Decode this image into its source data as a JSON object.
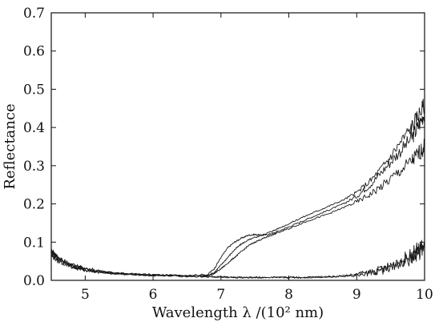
{
  "chart_data": {
    "type": "line",
    "title": "",
    "xlabel": "Wavelength λ /(10² nm)",
    "ylabel": "Reflectance",
    "xlim": [
      4.5,
      10
    ],
    "ylim": [
      0,
      0.7
    ],
    "grid": false,
    "x_ticks": [
      "5",
      "6",
      "7",
      "8",
      "9",
      "10"
    ],
    "y_ticks": [
      "0.0",
      "0.1",
      "0.2",
      "0.3",
      "0.4",
      "0.5",
      "0.6",
      "0.7"
    ],
    "series": [
      {
        "x": [
          4.5,
          4.6,
          4.8,
          5.0,
          5.3,
          5.6,
          6.0,
          6.4,
          6.8,
          6.9,
          7.0,
          7.1,
          7.2,
          7.3,
          7.4,
          7.5,
          7.6,
          7.7,
          7.8,
          8.0,
          8.2,
          8.4,
          8.6,
          8.8,
          9.0,
          9.2,
          9.4,
          9.6,
          9.8,
          9.9,
          10.0
        ],
        "y": [
          0.075,
          0.06,
          0.04,
          0.03,
          0.022,
          0.018,
          0.015,
          0.013,
          0.015,
          0.03,
          0.06,
          0.085,
          0.1,
          0.11,
          0.118,
          0.12,
          0.118,
          0.12,
          0.125,
          0.14,
          0.155,
          0.17,
          0.185,
          0.2,
          0.22,
          0.25,
          0.29,
          0.33,
          0.37,
          0.4,
          0.44
        ]
      },
      {
        "x": [
          4.5,
          4.6,
          4.8,
          5.0,
          5.3,
          5.6,
          6.0,
          6.4,
          6.8,
          6.9,
          7.0,
          7.1,
          7.2,
          7.3,
          7.4,
          7.5,
          7.6,
          7.7,
          7.8,
          8.0,
          8.2,
          8.4,
          8.6,
          8.8,
          9.0,
          9.2,
          9.4,
          9.6,
          9.8,
          9.9,
          10.0
        ],
        "y": [
          0.07,
          0.055,
          0.038,
          0.028,
          0.02,
          0.016,
          0.014,
          0.012,
          0.013,
          0.02,
          0.04,
          0.06,
          0.08,
          0.095,
          0.105,
          0.112,
          0.118,
          0.125,
          0.132,
          0.148,
          0.165,
          0.18,
          0.195,
          0.21,
          0.23,
          0.26,
          0.3,
          0.35,
          0.4,
          0.43,
          0.46
        ]
      },
      {
        "x": [
          4.5,
          4.6,
          4.8,
          5.0,
          5.3,
          5.6,
          6.0,
          6.4,
          6.8,
          6.9,
          7.0,
          7.1,
          7.2,
          7.3,
          7.4,
          7.5,
          7.6,
          7.7,
          7.8,
          8.0,
          8.2,
          8.4,
          8.6,
          8.8,
          9.0,
          9.2,
          9.4,
          9.6,
          9.8,
          9.9,
          10.0
        ],
        "y": [
          0.065,
          0.05,
          0.036,
          0.027,
          0.019,
          0.015,
          0.013,
          0.011,
          0.012,
          0.018,
          0.03,
          0.045,
          0.06,
          0.075,
          0.09,
          0.1,
          0.108,
          0.115,
          0.122,
          0.135,
          0.15,
          0.163,
          0.175,
          0.19,
          0.205,
          0.225,
          0.25,
          0.28,
          0.31,
          0.33,
          0.35
        ]
      },
      {
        "x": [
          4.5,
          4.6,
          4.8,
          5.0,
          5.3,
          5.6,
          6.0,
          6.4,
          6.8,
          7.0,
          7.2,
          7.4,
          7.6,
          7.8,
          8.0,
          8.2,
          8.4,
          8.6,
          8.8,
          9.0,
          9.2,
          9.4,
          9.6,
          9.8,
          9.9,
          10.0
        ],
        "y": [
          0.08,
          0.06,
          0.04,
          0.03,
          0.022,
          0.017,
          0.014,
          0.012,
          0.01,
          0.009,
          0.008,
          0.008,
          0.008,
          0.008,
          0.008,
          0.008,
          0.009,
          0.01,
          0.012,
          0.015,
          0.02,
          0.03,
          0.045,
          0.065,
          0.08,
          0.09
        ]
      },
      {
        "x": [
          4.5,
          4.6,
          4.8,
          5.0,
          5.3,
          5.6,
          6.0,
          6.4,
          6.8,
          7.0,
          7.2,
          7.4,
          7.6,
          7.8,
          8.0,
          8.2,
          8.4,
          8.6,
          8.8,
          9.0,
          9.2,
          9.4,
          9.6,
          9.8,
          9.9,
          10.0
        ],
        "y": [
          0.075,
          0.058,
          0.038,
          0.028,
          0.02,
          0.016,
          0.013,
          0.011,
          0.009,
          0.008,
          0.007,
          0.007,
          0.007,
          0.007,
          0.007,
          0.007,
          0.008,
          0.009,
          0.011,
          0.014,
          0.02,
          0.028,
          0.04,
          0.055,
          0.07,
          0.08
        ]
      }
    ]
  }
}
